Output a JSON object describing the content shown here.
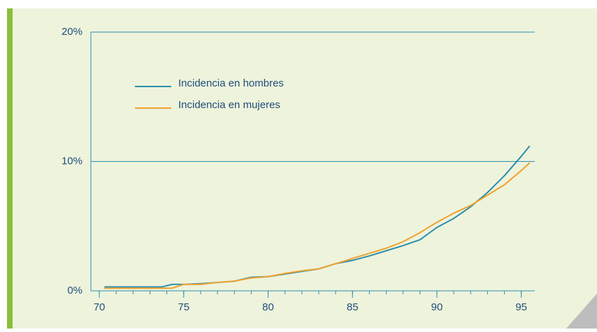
{
  "chart_data": {
    "type": "line",
    "x": [
      70.3,
      73.7,
      74.3,
      75,
      76,
      77,
      78,
      79,
      80,
      81,
      82,
      83,
      84,
      85,
      86,
      87,
      88,
      89,
      90,
      91,
      92,
      93,
      94,
      95,
      95.5
    ],
    "series": [
      {
        "name": "Incidencia en hombres",
        "color": "#2b8fae",
        "values": [
          0.3,
          0.3,
          0.5,
          0.5,
          0.55,
          0.65,
          0.75,
          1.05,
          1.1,
          1.3,
          1.5,
          1.7,
          2.1,
          2.35,
          2.7,
          3.1,
          3.5,
          3.95,
          4.9,
          5.6,
          6.5,
          7.6,
          8.9,
          10.4,
          11.2
        ]
      },
      {
        "name": "Incidencia en mujeres",
        "color": "#f0a22e",
        "values": [
          0.2,
          0.2,
          0.2,
          0.5,
          0.5,
          0.65,
          0.75,
          1.0,
          1.1,
          1.35,
          1.55,
          1.7,
          2.1,
          2.5,
          2.9,
          3.3,
          3.8,
          4.5,
          5.3,
          6.0,
          6.6,
          7.4,
          8.2,
          9.3,
          9.9
        ]
      }
    ],
    "xlim": [
      69.5,
      95.8
    ],
    "xticks": [
      70,
      75,
      80,
      85,
      90,
      95
    ],
    "ylim": [
      0,
      20
    ],
    "yticks": [
      {
        "value": 0,
        "label": "0%"
      },
      {
        "value": 10,
        "label": "10%"
      },
      {
        "value": 20,
        "label": "20%"
      }
    ],
    "grid": true,
    "legend": "upper left"
  }
}
